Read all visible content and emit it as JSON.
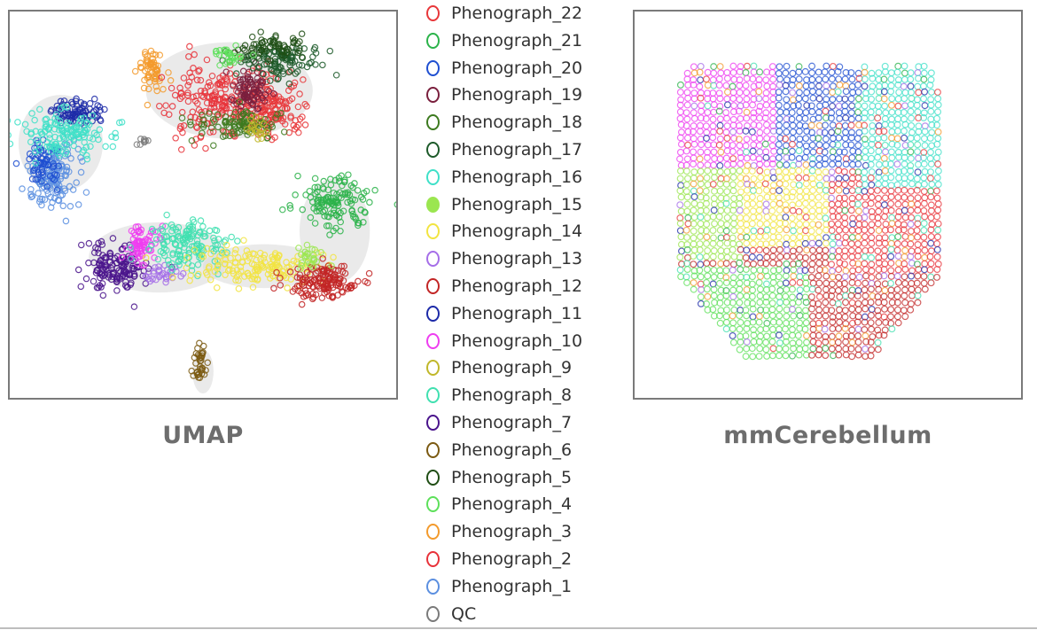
{
  "chart_data": [
    {
      "type": "scatter",
      "title": "UMAP",
      "xlabel": "",
      "ylabel": "",
      "grid": false
    },
    {
      "type": "scatter",
      "title": "mmCerebellum",
      "xlabel": "",
      "ylabel": "",
      "grid": false
    }
  ],
  "legend": {
    "placement": "center",
    "items": [
      {
        "label": "Phenograph_22",
        "color": "#e8373a",
        "filled": false
      },
      {
        "label": "Phenograph_21",
        "color": "#2bb34a",
        "filled": false
      },
      {
        "label": "Phenograph_20",
        "color": "#1f4fd1",
        "filled": false
      },
      {
        "label": "Phenograph_19",
        "color": "#7a1f3d",
        "filled": false
      },
      {
        "label": "Phenograph_18",
        "color": "#3d7a1f",
        "filled": false
      },
      {
        "label": "Phenograph_17",
        "color": "#1d5a2a",
        "filled": false
      },
      {
        "label": "Phenograph_16",
        "color": "#3fe0c8",
        "filled": false
      },
      {
        "label": "Phenograph_15",
        "color": "#9be650",
        "filled": true
      },
      {
        "label": "Phenograph_14",
        "color": "#f2e441",
        "filled": false
      },
      {
        "label": "Phenograph_13",
        "color": "#a56ee8",
        "filled": false
      },
      {
        "label": "Phenograph_12",
        "color": "#c22525",
        "filled": false
      },
      {
        "label": "Phenograph_11",
        "color": "#1c2aa8",
        "filled": false
      },
      {
        "label": "Phenograph_10",
        "color": "#ee3df0",
        "filled": false
      },
      {
        "label": "Phenograph_9",
        "color": "#c0b72a",
        "filled": false
      },
      {
        "label": "Phenograph_8",
        "color": "#40e0b0",
        "filled": false
      },
      {
        "label": "Phenograph_7",
        "color": "#4a148c",
        "filled": false
      },
      {
        "label": "Phenograph_6",
        "color": "#7b5a12",
        "filled": false
      },
      {
        "label": "Phenograph_5",
        "color": "#1f4d14",
        "filled": false
      },
      {
        "label": "Phenograph_4",
        "color": "#5de05a",
        "filled": false
      },
      {
        "label": "Phenograph_3",
        "color": "#f39a2c",
        "filled": false
      },
      {
        "label": "Phenograph_2",
        "color": "#e8323a",
        "filled": false
      },
      {
        "label": "Phenograph_1",
        "color": "#5b8fe0",
        "filled": false
      },
      {
        "label": "QC",
        "color": "#7a7a7a",
        "filled": false
      }
    ]
  }
}
